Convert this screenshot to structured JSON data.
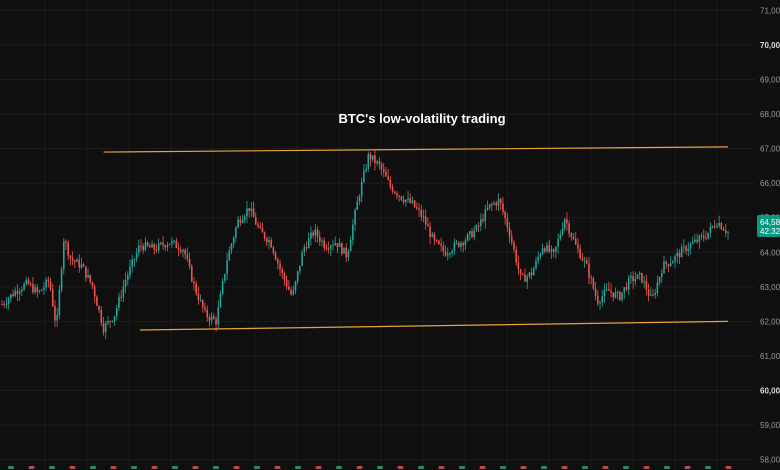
{
  "chart_data": {
    "type": "candlestick",
    "title": "BTC's low-volatility trading",
    "y_axis": {
      "position": "right",
      "ylim": [
        57700,
        71300
      ],
      "ticks": [
        {
          "value": 71000,
          "label": "71,00"
        },
        {
          "value": 70000,
          "label": "70,00",
          "bold": true
        },
        {
          "value": 69000,
          "label": "69,00"
        },
        {
          "value": 68000,
          "label": "68,00"
        },
        {
          "value": 67000,
          "label": "67,00"
        },
        {
          "value": 66000,
          "label": "66,00"
        },
        {
          "value": 65000,
          "label": "65,00",
          "bold": true
        },
        {
          "value": 64000,
          "label": "64,00"
        },
        {
          "value": 63000,
          "label": "63,00"
        },
        {
          "value": 62000,
          "label": "62,00"
        },
        {
          "value": 61000,
          "label": "61,00"
        },
        {
          "value": 60000,
          "label": "60,00",
          "bold": true
        },
        {
          "value": 59000,
          "label": "59,00"
        },
        {
          "value": 58000,
          "label": "58,00"
        }
      ]
    },
    "grid": true,
    "current_price": {
      "value": 64580,
      "label": "64,58",
      "countdown": "42:32",
      "color": "#089981"
    },
    "colors": {
      "up": "#26a69a",
      "down": "#ef5350",
      "channel": "#e8a33c",
      "background": "#0f0f0f"
    },
    "price_path": [
      {
        "t": 0.0,
        "p": 62500
      },
      {
        "t": 0.02,
        "p": 62900
      },
      {
        "t": 0.035,
        "p": 63100
      },
      {
        "t": 0.05,
        "p": 62800
      },
      {
        "t": 0.065,
        "p": 63200
      },
      {
        "t": 0.075,
        "p": 61800
      },
      {
        "t": 0.085,
        "p": 64400
      },
      {
        "t": 0.095,
        "p": 63800
      },
      {
        "t": 0.11,
        "p": 63600
      },
      {
        "t": 0.125,
        "p": 63000
      },
      {
        "t": 0.14,
        "p": 61800
      },
      {
        "t": 0.155,
        "p": 62200
      },
      {
        "t": 0.17,
        "p": 63200
      },
      {
        "t": 0.19,
        "p": 64200
      },
      {
        "t": 0.21,
        "p": 64100
      },
      {
        "t": 0.23,
        "p": 64300
      },
      {
        "t": 0.25,
        "p": 64100
      },
      {
        "t": 0.265,
        "p": 63000
      },
      {
        "t": 0.28,
        "p": 62200
      },
      {
        "t": 0.295,
        "p": 62000
      },
      {
        "t": 0.31,
        "p": 63800
      },
      {
        "t": 0.325,
        "p": 64900
      },
      {
        "t": 0.34,
        "p": 65300
      },
      {
        "t": 0.355,
        "p": 64600
      },
      {
        "t": 0.37,
        "p": 64300
      },
      {
        "t": 0.385,
        "p": 63400
      },
      {
        "t": 0.4,
        "p": 62700
      },
      {
        "t": 0.415,
        "p": 64100
      },
      {
        "t": 0.43,
        "p": 64600
      },
      {
        "t": 0.445,
        "p": 64200
      },
      {
        "t": 0.46,
        "p": 64300
      },
      {
        "t": 0.475,
        "p": 63900
      },
      {
        "t": 0.49,
        "p": 65500
      },
      {
        "t": 0.505,
        "p": 66800
      },
      {
        "t": 0.52,
        "p": 66500
      },
      {
        "t": 0.535,
        "p": 65900
      },
      {
        "t": 0.55,
        "p": 65600
      },
      {
        "t": 0.565,
        "p": 65400
      },
      {
        "t": 0.58,
        "p": 65000
      },
      {
        "t": 0.595,
        "p": 64300
      },
      {
        "t": 0.61,
        "p": 64000
      },
      {
        "t": 0.625,
        "p": 64200
      },
      {
        "t": 0.64,
        "p": 64400
      },
      {
        "t": 0.655,
        "p": 64700
      },
      {
        "t": 0.67,
        "p": 65300
      },
      {
        "t": 0.685,
        "p": 65500
      },
      {
        "t": 0.7,
        "p": 64500
      },
      {
        "t": 0.715,
        "p": 63200
      },
      {
        "t": 0.73,
        "p": 63400
      },
      {
        "t": 0.745,
        "p": 64200
      },
      {
        "t": 0.76,
        "p": 63900
      },
      {
        "t": 0.775,
        "p": 65000
      },
      {
        "t": 0.79,
        "p": 64200
      },
      {
        "t": 0.805,
        "p": 63600
      },
      {
        "t": 0.82,
        "p": 62600
      },
      {
        "t": 0.835,
        "p": 62900
      },
      {
        "t": 0.85,
        "p": 62700
      },
      {
        "t": 0.865,
        "p": 63200
      },
      {
        "t": 0.88,
        "p": 63300
      },
      {
        "t": 0.895,
        "p": 62600
      },
      {
        "t": 0.91,
        "p": 63600
      },
      {
        "t": 0.925,
        "p": 63800
      },
      {
        "t": 0.94,
        "p": 64100
      },
      {
        "t": 0.955,
        "p": 64300
      },
      {
        "t": 0.97,
        "p": 64500
      },
      {
        "t": 0.985,
        "p": 64900
      },
      {
        "t": 1.0,
        "p": 64580
      }
    ],
    "channel_lines": [
      {
        "name": "upper-channel-line",
        "from": {
          "t": 0.14,
          "p": 66900
        },
        "to": {
          "t": 1.0,
          "p": 67050
        }
      },
      {
        "name": "lower-channel-line",
        "from": {
          "t": 0.19,
          "p": 61750
        },
        "to": {
          "t": 1.0,
          "p": 62000
        }
      }
    ]
  }
}
